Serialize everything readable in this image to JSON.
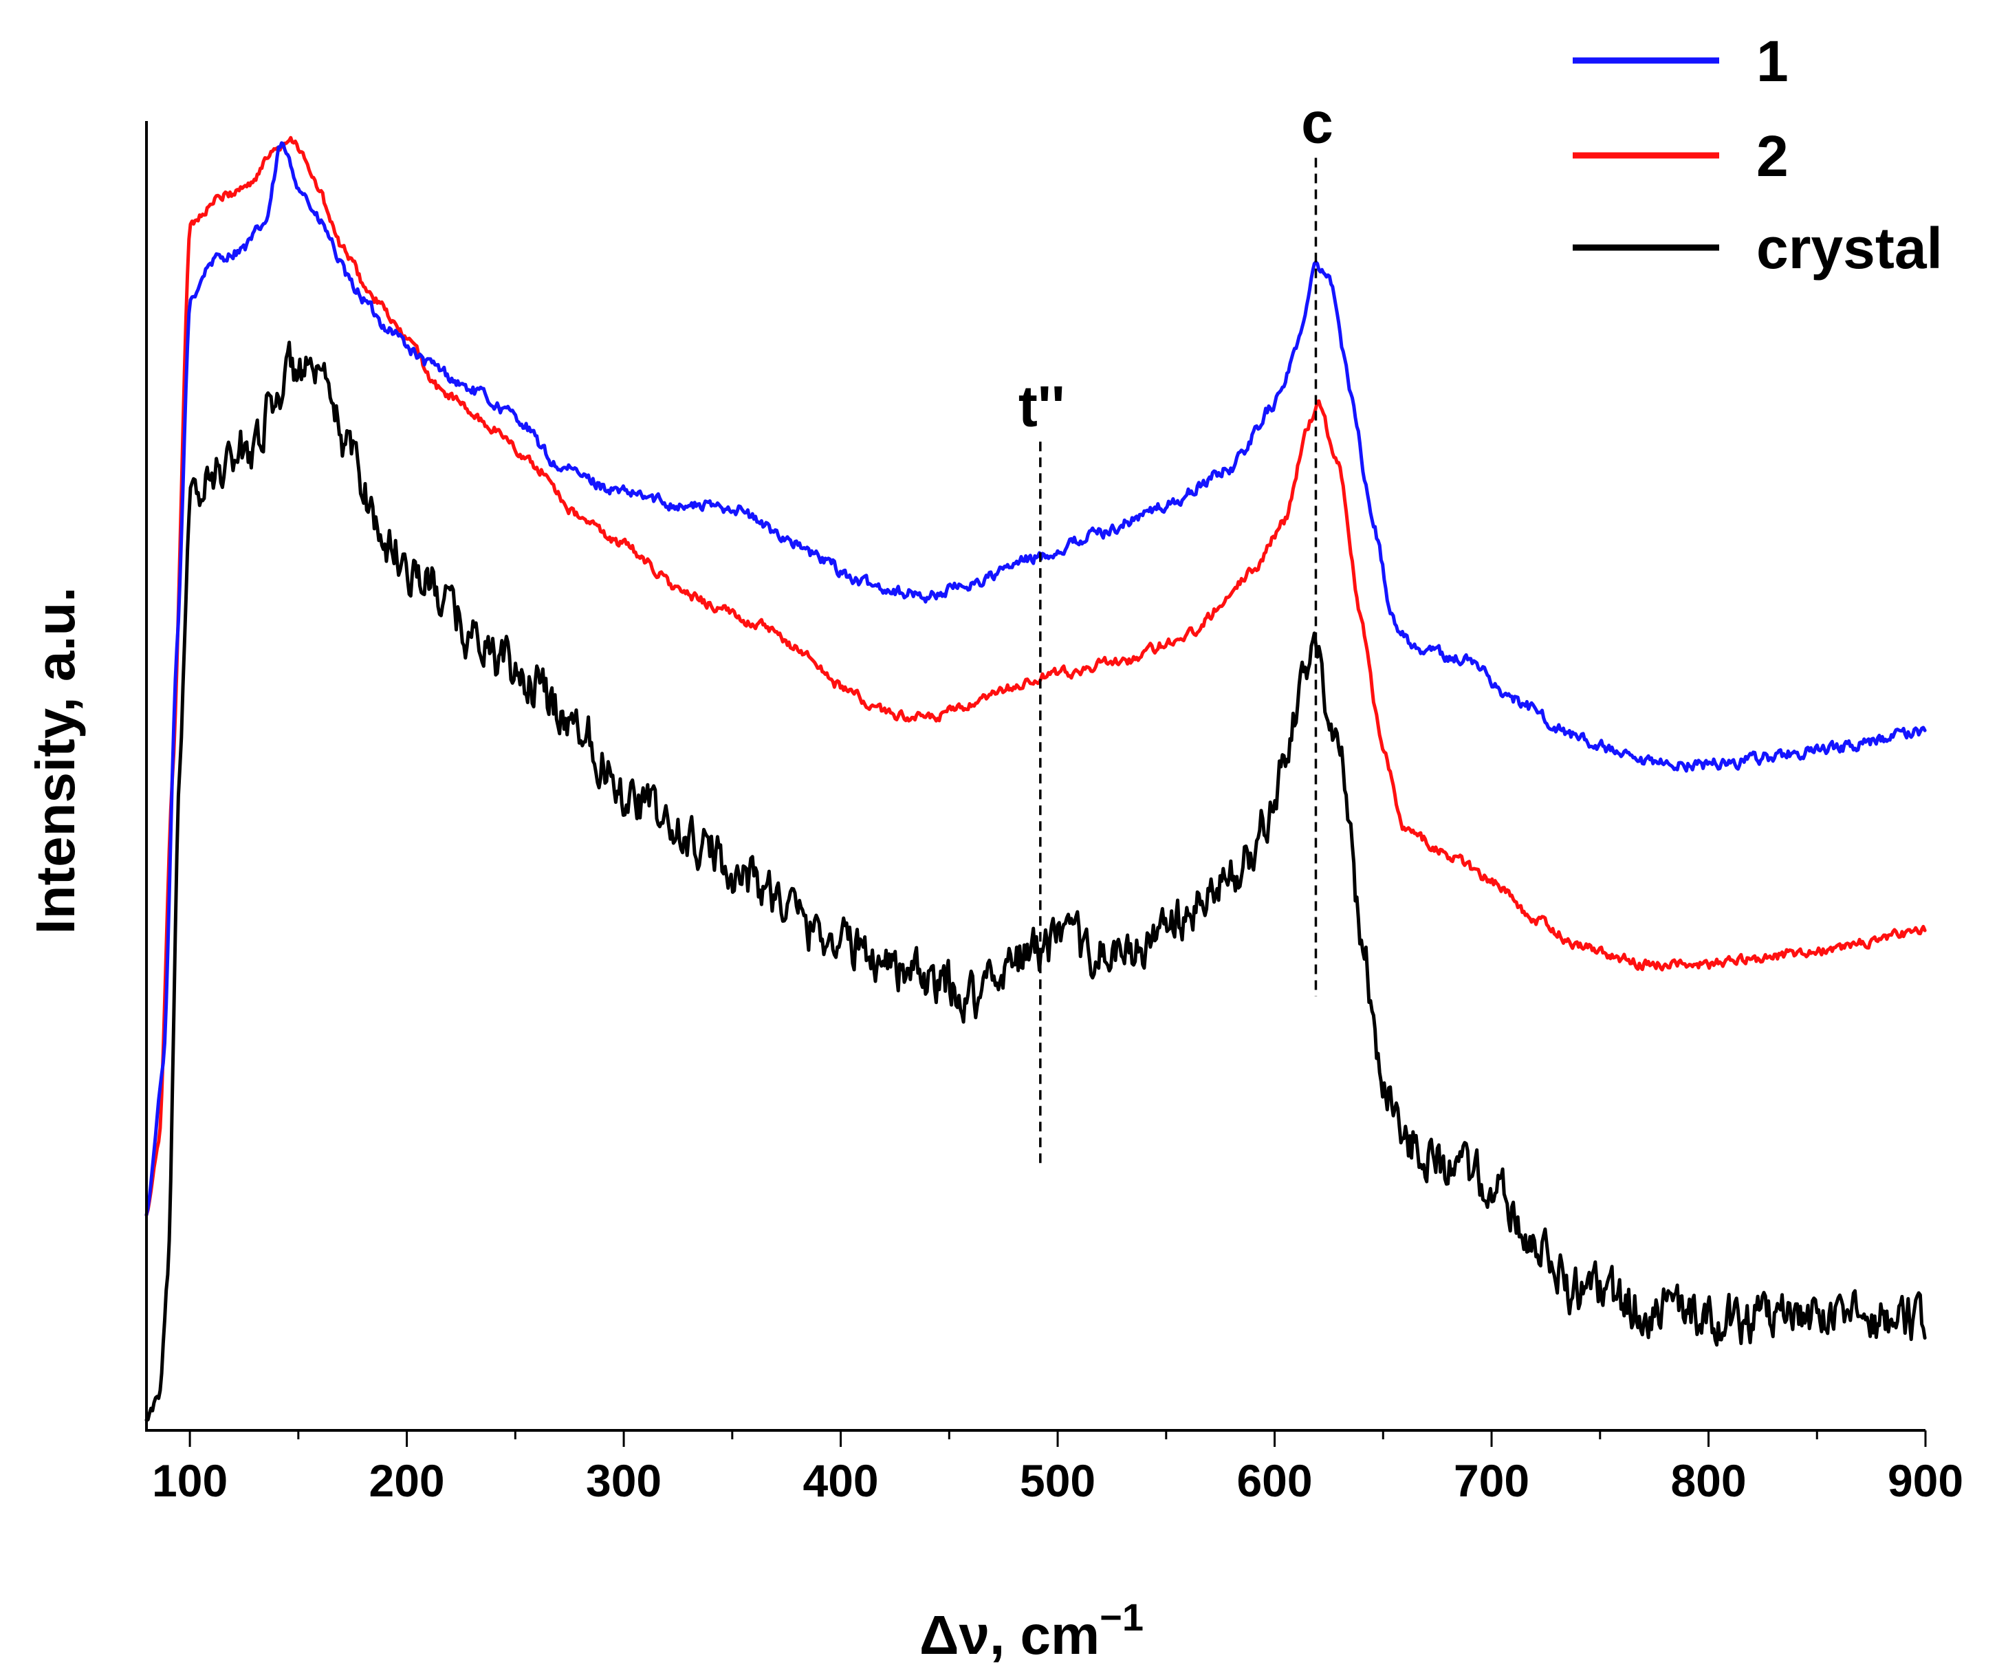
{
  "chart_data": {
    "type": "line",
    "xlabel": "Δν, cm",
    "xlabel_sup": "−1",
    "ylabel": "Intensity, a.u.",
    "xlim": [
      80,
      900
    ],
    "ylim": [
      0,
      100
    ],
    "x_ticks": [
      100,
      200,
      300,
      400,
      500,
      600,
      700,
      800,
      900
    ],
    "x_tick_labels": [
      "100",
      "200",
      "300",
      "400",
      "500",
      "600",
      "700",
      "800",
      "900"
    ],
    "legend_position": "top-right",
    "grid": false,
    "series": [
      {
        "name": "1",
        "color": "#1414ff",
        "noise": 0.35,
        "points": [
          [
            80,
            16
          ],
          [
            88,
            28
          ],
          [
            94,
            60
          ],
          [
            100,
            87
          ],
          [
            110,
            90
          ],
          [
            125,
            91
          ],
          [
            135,
            93
          ],
          [
            142,
            99
          ],
          [
            150,
            96
          ],
          [
            160,
            93
          ],
          [
            175,
            88
          ],
          [
            190,
            85
          ],
          [
            210,
            82
          ],
          [
            230,
            80
          ],
          [
            250,
            78
          ],
          [
            270,
            74
          ],
          [
            300,
            72
          ],
          [
            330,
            71
          ],
          [
            350,
            71
          ],
          [
            370,
            69
          ],
          [
            390,
            67
          ],
          [
            410,
            65
          ],
          [
            440,
            64
          ],
          [
            460,
            65
          ],
          [
            490,
            67
          ],
          [
            520,
            69
          ],
          [
            550,
            71
          ],
          [
            580,
            74
          ],
          [
            600,
            79
          ],
          [
            612,
            84
          ],
          [
            618,
            90
          ],
          [
            625,
            89
          ],
          [
            635,
            80
          ],
          [
            645,
            70
          ],
          [
            655,
            62
          ],
          [
            665,
            60
          ],
          [
            690,
            59
          ],
          [
            710,
            56
          ],
          [
            740,
            53
          ],
          [
            770,
            51
          ],
          [
            800,
            51
          ],
          [
            850,
            52
          ],
          [
            900,
            53.5
          ]
        ]
      },
      {
        "name": "2",
        "color": "#ff1010",
        "noise": 0.3,
        "points": [
          [
            80,
            16
          ],
          [
            86,
            22
          ],
          [
            92,
            50
          ],
          [
            100,
            93
          ],
          [
            115,
            95
          ],
          [
            128,
            96
          ],
          [
            140,
            99
          ],
          [
            148,
            99.5
          ],
          [
            158,
            96
          ],
          [
            170,
            91
          ],
          [
            185,
            87
          ],
          [
            200,
            84
          ],
          [
            215,
            80
          ],
          [
            240,
            77
          ],
          [
            260,
            74
          ],
          [
            280,
            70
          ],
          [
            300,
            68
          ],
          [
            330,
            64
          ],
          [
            360,
            62
          ],
          [
            380,
            60
          ],
          [
            400,
            57
          ],
          [
            420,
            55
          ],
          [
            440,
            54.5
          ],
          [
            460,
            55.5
          ],
          [
            480,
            57
          ],
          [
            500,
            58
          ],
          [
            530,
            59
          ],
          [
            560,
            61
          ],
          [
            590,
            66
          ],
          [
            605,
            70
          ],
          [
            615,
            77
          ],
          [
            620,
            79
          ],
          [
            630,
            74
          ],
          [
            640,
            62
          ],
          [
            650,
            52
          ],
          [
            660,
            46
          ],
          [
            680,
            44
          ],
          [
            700,
            42
          ],
          [
            720,
            39
          ],
          [
            740,
            37
          ],
          [
            770,
            35.5
          ],
          [
            800,
            35.5
          ],
          [
            850,
            36.5
          ],
          [
            900,
            38
          ]
        ]
      },
      {
        "name": "crystal",
        "color": "#000000",
        "noise": 1.4,
        "points": [
          [
            80,
            0
          ],
          [
            86,
            2
          ],
          [
            90,
            12
          ],
          [
            95,
            50
          ],
          [
            100,
            71
          ],
          [
            115,
            74
          ],
          [
            130,
            76
          ],
          [
            140,
            80
          ],
          [
            150,
            82
          ],
          [
            160,
            80
          ],
          [
            175,
            75
          ],
          [
            190,
            68
          ],
          [
            210,
            65
          ],
          [
            230,
            61
          ],
          [
            250,
            58
          ],
          [
            280,
            54
          ],
          [
            300,
            49
          ],
          [
            330,
            45
          ],
          [
            360,
            42
          ],
          [
            390,
            38
          ],
          [
            420,
            36
          ],
          [
            440,
            34
          ],
          [
            460,
            33
          ],
          [
            480,
            36
          ],
          [
            500,
            37
          ],
          [
            530,
            36
          ],
          [
            560,
            39
          ],
          [
            590,
            44
          ],
          [
            605,
            51
          ],
          [
            615,
            59
          ],
          [
            620,
            59
          ],
          [
            630,
            52
          ],
          [
            640,
            38
          ],
          [
            648,
            28
          ],
          [
            660,
            22
          ],
          [
            680,
            20
          ],
          [
            700,
            18
          ],
          [
            720,
            14
          ],
          [
            740,
            10
          ],
          [
            770,
            9
          ],
          [
            800,
            8
          ],
          [
            850,
            8
          ],
          [
            900,
            8
          ]
        ]
      }
    ],
    "annotations": [
      {
        "text": "t''",
        "x": 492,
        "line_y": [
          20,
          76
        ]
      },
      {
        "text": "c",
        "x": 619,
        "line_y": [
          33,
          98
        ]
      }
    ]
  }
}
